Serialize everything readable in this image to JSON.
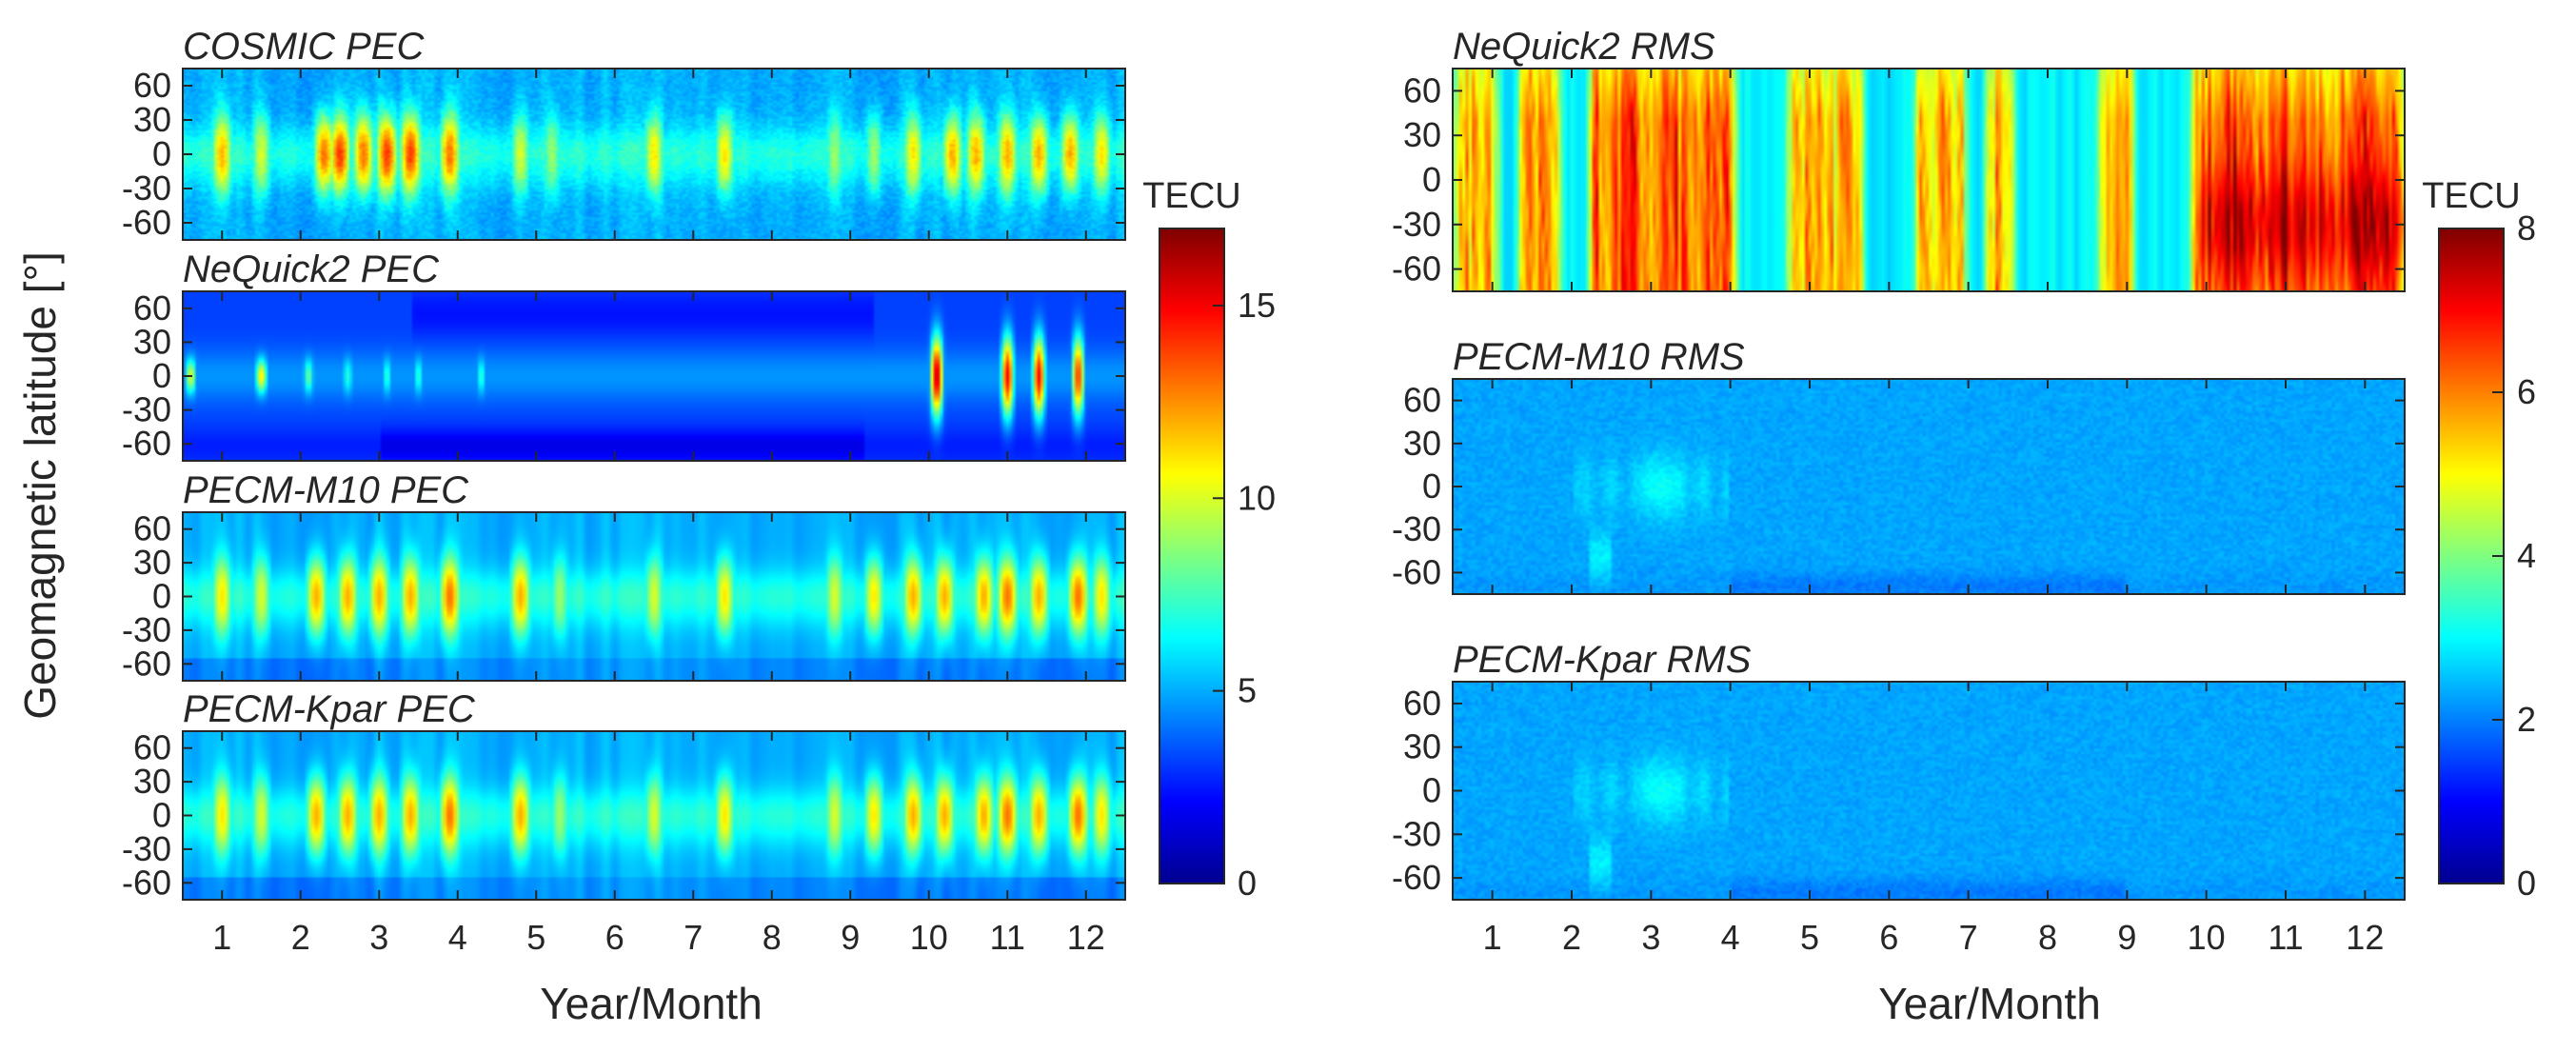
{
  "chart_data": {
    "type": "heatmap",
    "ylabel": "Geomagnetic latitude [°]",
    "xlabel": "Year/Month",
    "x_ticks": [
      "1",
      "2",
      "3",
      "4",
      "5",
      "6",
      "7",
      "8",
      "9",
      "10",
      "11",
      "12"
    ],
    "xlim": [
      0.5,
      12.5
    ],
    "y_ticks": [
      "60",
      "30",
      "0",
      "-30",
      "-60"
    ],
    "ylim": [
      -75,
      75
    ],
    "colormap": "jet",
    "panels": [
      {
        "title": "COSMIC PEC",
        "kind": "pec",
        "variant": "cosmic",
        "peaks_month": [
          1.0,
          1.5,
          2.3,
          2.5,
          2.8,
          3.1,
          3.4,
          3.9,
          4.8,
          5.2,
          6.5,
          7.4,
          8.8,
          9.3,
          9.8,
          10.3,
          10.6,
          11.0,
          11.4,
          11.8,
          12.2
        ],
        "peaks_tecu": [
          12,
          10,
          13,
          14,
          13,
          14,
          14,
          13,
          10,
          9,
          11,
          11,
          9,
          9,
          11,
          12,
          12,
          12,
          12,
          12,
          11
        ]
      },
      {
        "title": "NeQuick2 PEC",
        "kind": "pec",
        "variant": "nequick",
        "peaks_month": [
          0.6,
          1.5,
          2.1,
          2.6,
          3.1,
          3.5,
          4.3,
          10.1,
          11.0,
          11.4,
          11.9
        ],
        "peaks_tecu": [
          10,
          11,
          8,
          7,
          7,
          7,
          7,
          16,
          15,
          15,
          14
        ]
      },
      {
        "title": "PECM-M10 PEC",
        "kind": "pec",
        "variant": "model",
        "peaks_month": [
          1.0,
          1.5,
          2.2,
          2.6,
          3.0,
          3.4,
          3.9,
          4.8,
          5.3,
          6.5,
          7.4,
          8.8,
          9.3,
          9.8,
          10.2,
          10.7,
          11.0,
          11.4,
          11.9,
          12.2
        ],
        "peaks_tecu": [
          11,
          10,
          12,
          12,
          12,
          12,
          13,
          12,
          9,
          10,
          11,
          10,
          11,
          12,
          12,
          12,
          13,
          12,
          13,
          11
        ]
      },
      {
        "title": "PECM-Kpar PEC",
        "kind": "pec",
        "variant": "model",
        "peaks_month": [
          1.0,
          1.5,
          2.2,
          2.6,
          3.0,
          3.4,
          3.9,
          4.8,
          5.3,
          6.5,
          7.4,
          8.8,
          9.3,
          9.8,
          10.2,
          10.7,
          11.0,
          11.4,
          11.9,
          12.2
        ],
        "peaks_tecu": [
          11,
          10,
          12,
          12,
          12,
          12,
          13,
          12,
          9,
          10,
          11,
          10,
          11,
          12,
          12,
          12,
          13,
          12,
          13,
          11
        ]
      },
      {
        "title": "NeQuick2 RMS",
        "kind": "rms",
        "variant": "nequick",
        "high_bands_month": [
          [
            0.6,
            1.0
          ],
          [
            1.4,
            1.8
          ],
          [
            2.3,
            4.0
          ],
          [
            4.8,
            5.6
          ],
          [
            6.4,
            6.9
          ],
          [
            7.3,
            7.5
          ],
          [
            8.7,
            9.0
          ],
          [
            9.9,
            12.4
          ]
        ],
        "band_rms_tecu": [
          6,
          6,
          7,
          6,
          6,
          6,
          6,
          7
        ]
      },
      {
        "title": "PECM-M10 RMS",
        "kind": "rms",
        "variant": "model",
        "typical_rms_tecu": 2.3,
        "max_rms_tecu": 4
      },
      {
        "title": "PECM-Kpar RMS",
        "kind": "rms",
        "variant": "model",
        "typical_rms_tecu": 2.3,
        "max_rms_tecu": 4
      }
    ],
    "colorbars": [
      {
        "label": "TECU",
        "vmin": 0,
        "vmax": 17,
        "ticks": [
          "0",
          "5",
          "10",
          "15"
        ],
        "tick_values": [
          0,
          5,
          10,
          15
        ]
      },
      {
        "label": "TECU",
        "vmin": 0,
        "vmax": 8,
        "ticks": [
          "0",
          "2",
          "4",
          "6",
          "8"
        ],
        "tick_values": [
          0,
          2,
          4,
          6,
          8
        ]
      }
    ]
  }
}
